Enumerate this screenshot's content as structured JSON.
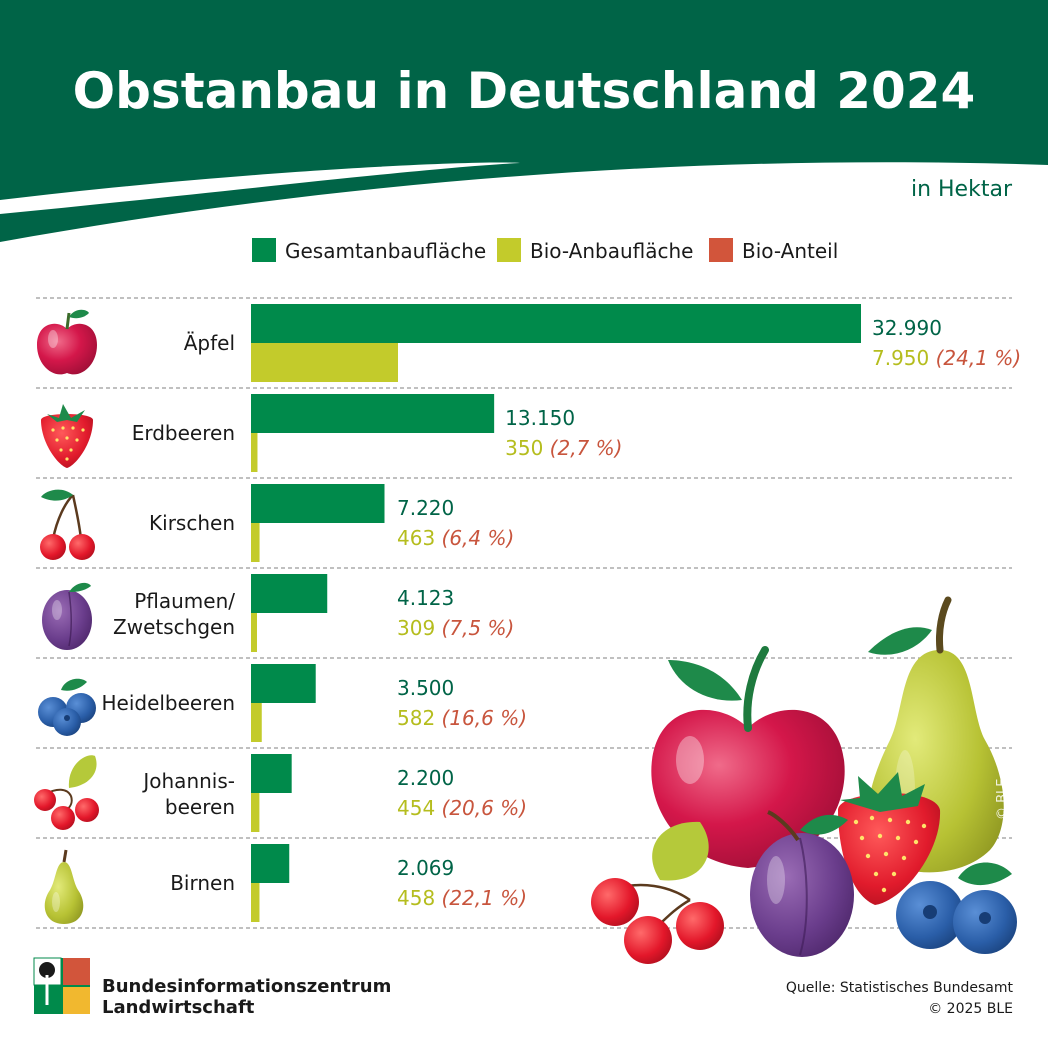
{
  "title": "Obstanbau in Deutschland 2024",
  "unit": "in Hektar",
  "legend": [
    {
      "label": "Gesamtanbaufläche",
      "color": "#008a4b"
    },
    {
      "label": "Bio-Anbaufläche",
      "color": "#c3cb2b"
    },
    {
      "label": "Bio-Anteil",
      "color": "#d2553b"
    }
  ],
  "colors": {
    "header": "#006447",
    "total": "#008a4b",
    "bio": "#c3cb2b",
    "share": "#c8553d",
    "bio_text": "#b5bd1e"
  },
  "chart_data": {
    "type": "bar",
    "orientation": "horizontal",
    "title": "Obstanbau in Deutschland 2024",
    "unit": "in Hektar",
    "xlim": [
      0,
      32990
    ],
    "grid": false,
    "legend_position": "top",
    "categories": [
      {
        "label_lines": [
          "Äpfel"
        ],
        "icon": "apple-icon",
        "total": 32990,
        "total_label": "32.990",
        "bio": 7950,
        "bio_label": "7.950",
        "share_label": "(24,1 %)"
      },
      {
        "label_lines": [
          "Erdbeeren"
        ],
        "icon": "strawberry-icon",
        "total": 13150,
        "total_label": "13.150",
        "bio": 350,
        "bio_label": "350",
        "share_label": "(2,7 %)"
      },
      {
        "label_lines": [
          "Kirschen"
        ],
        "icon": "cherry-icon",
        "total": 7220,
        "total_label": "7.220",
        "bio": 463,
        "bio_label": "463",
        "share_label": "(6,4 %)"
      },
      {
        "label_lines": [
          "Pflaumen/",
          "Zwetschgen"
        ],
        "icon": "plum-icon",
        "total": 4123,
        "total_label": "4.123",
        "bio": 309,
        "bio_label": "309",
        "share_label": "(7,5 %)"
      },
      {
        "label_lines": [
          "Heidelbeeren"
        ],
        "icon": "blueberry-icon",
        "total": 3500,
        "total_label": "3.500",
        "bio": 582,
        "bio_label": "582",
        "share_label": "(16,6 %)"
      },
      {
        "label_lines": [
          "Johannis-",
          "beeren"
        ],
        "icon": "currant-icon",
        "total": 2200,
        "total_label": "2.200",
        "bio": 454,
        "bio_label": "454",
        "share_label": "(20,6 %)"
      },
      {
        "label_lines": [
          "Birnen"
        ],
        "icon": "pear-icon",
        "total": 2069,
        "total_label": "2.069",
        "bio": 458,
        "bio_label": "458",
        "share_label": "(22,1 %)"
      }
    ]
  },
  "footer": {
    "org_line1": "Bundesinformationszentrum",
    "org_line2": "Landwirtschaft",
    "source": "Quelle: Statistisches Bundesamt",
    "copyright": "© 2025 BLE",
    "image_copyright": "© BLE"
  }
}
